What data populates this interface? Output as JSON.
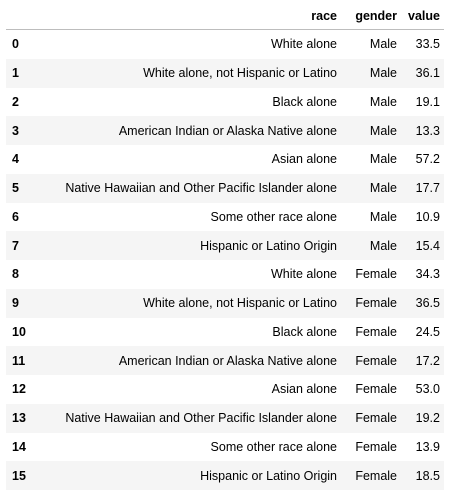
{
  "table": {
    "columns": [
      "race",
      "gender",
      "value"
    ],
    "index_header": "",
    "rows": [
      {
        "index": "0",
        "race": "White alone",
        "gender": "Male",
        "value": "33.5"
      },
      {
        "index": "1",
        "race": "White alone, not Hispanic or Latino",
        "gender": "Male",
        "value": "36.1"
      },
      {
        "index": "2",
        "race": "Black alone",
        "gender": "Male",
        "value": "19.1"
      },
      {
        "index": "3",
        "race": "American Indian or Alaska Native alone",
        "gender": "Male",
        "value": "13.3"
      },
      {
        "index": "4",
        "race": "Asian alone",
        "gender": "Male",
        "value": "57.2"
      },
      {
        "index": "5",
        "race": "Native Hawaiian and Other Pacific Islander alone",
        "gender": "Male",
        "value": "17.7"
      },
      {
        "index": "6",
        "race": "Some other race alone",
        "gender": "Male",
        "value": "10.9"
      },
      {
        "index": "7",
        "race": "Hispanic or Latino Origin",
        "gender": "Male",
        "value": "15.4"
      },
      {
        "index": "8",
        "race": "White alone",
        "gender": "Female",
        "value": "34.3"
      },
      {
        "index": "9",
        "race": "White alone, not Hispanic or Latino",
        "gender": "Female",
        "value": "36.5"
      },
      {
        "index": "10",
        "race": "Black alone",
        "gender": "Female",
        "value": "24.5"
      },
      {
        "index": "11",
        "race": "American Indian or Alaska Native alone",
        "gender": "Female",
        "value": "17.2"
      },
      {
        "index": "12",
        "race": "Asian alone",
        "gender": "Female",
        "value": "53.0"
      },
      {
        "index": "13",
        "race": "Native Hawaiian and Other Pacific Islander alone",
        "gender": "Female",
        "value": "19.2"
      },
      {
        "index": "14",
        "race": "Some other race alone",
        "gender": "Female",
        "value": "13.9"
      },
      {
        "index": "15",
        "race": "Hispanic or Latino Origin",
        "gender": "Female",
        "value": "18.5"
      }
    ]
  },
  "colors": {
    "stripe": "#f5f5f5",
    "header_border": "#bdbdbd",
    "text": "#000000"
  }
}
